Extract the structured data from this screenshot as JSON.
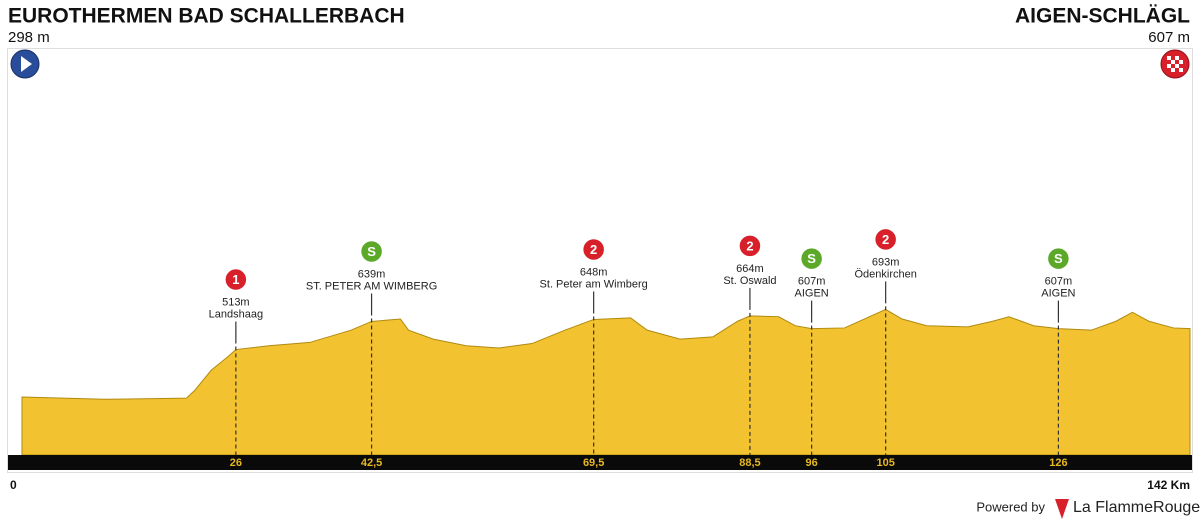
{
  "chart_data": {
    "type": "area",
    "start": {
      "name": "EUROTHERMEN BAD SCHALLERBACH",
      "altitude": "298 m"
    },
    "finish": {
      "name": "AIGEN-SCHLÄGL",
      "altitude": "607 m"
    },
    "x": [
      0,
      10,
      20,
      21,
      23,
      25,
      26,
      30,
      35,
      40,
      42.5,
      46,
      47,
      50,
      54,
      58,
      62,
      66,
      69.5,
      74,
      76,
      80,
      84,
      87,
      88.5,
      92,
      94,
      96,
      100,
      103,
      105,
      107,
      110,
      115,
      118,
      120,
      123,
      126,
      130,
      133,
      135,
      137,
      140,
      142
    ],
    "values": [
      300,
      290,
      295,
      330,
      420,
      480,
      513,
      530,
      545,
      600,
      639,
      650,
      600,
      560,
      530,
      520,
      540,
      600,
      648,
      655,
      600,
      560,
      570,
      640,
      664,
      660,
      620,
      607,
      610,
      660,
      693,
      650,
      620,
      615,
      640,
      660,
      620,
      607,
      600,
      640,
      680,
      640,
      610,
      607
    ],
    "color": "#f2c230",
    "xlim": [
      0,
      142
    ],
    "ylim": [
      40,
      1000
    ],
    "xticks": [
      0,
      {
        "value": 142,
        "label": "142 Km"
      }
    ],
    "climbs": [
      {
        "km": 26,
        "category": "1",
        "color": "#d7202a",
        "altitude": "513m",
        "name": "Landshaag"
      },
      {
        "km": {
          "value": 42.5,
          "label": "42,5"
        },
        "category": "S",
        "color": "#5ca92a",
        "altitude": "639m",
        "name": "ST. PETER AM WIMBERG"
      },
      {
        "km": {
          "value": 69.5,
          "label": "69,5"
        },
        "category": "2",
        "color": "#d7202a",
        "altitude": "648m",
        "name": "St. Peter am Wimberg"
      },
      {
        "km": {
          "value": 88.5,
          "label": "88,5"
        },
        "category": "2",
        "color": "#d7202a",
        "altitude": "664m",
        "name": "St. Oswald"
      },
      {
        "km": 96,
        "category": "S",
        "color": "#5ca92a",
        "altitude": "607m",
        "name": "AIGEN"
      },
      {
        "km": 105,
        "category": "2",
        "color": "#d7202a",
        "altitude": "693m",
        "name": "Ödenkirchen"
      },
      {
        "km": 126,
        "category": "S",
        "color": "#5ca92a",
        "altitude": "607m",
        "name": "AIGEN"
      }
    ],
    "climb_altitudes": [
      513,
      639,
      648,
      664,
      607,
      693,
      607
    ],
    "footer": {
      "powered": "Powered by",
      "brand": "La FlammeRouge"
    }
  }
}
